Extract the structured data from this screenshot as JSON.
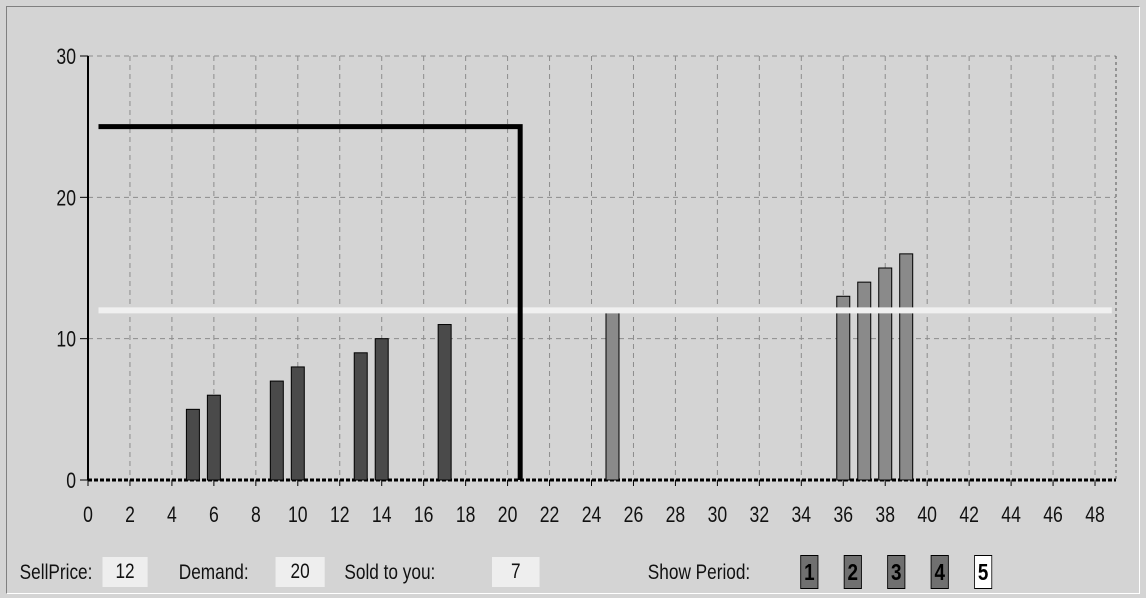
{
  "chart_data": {
    "type": "bar",
    "x_ticks": [
      0,
      2,
      4,
      6,
      8,
      10,
      12,
      14,
      16,
      18,
      20,
      22,
      24,
      26,
      28,
      30,
      32,
      34,
      36,
      38,
      40,
      42,
      44,
      46,
      48
    ],
    "y_ticks": [
      0,
      10,
      20,
      30
    ],
    "xlim": [
      0,
      49
    ],
    "ylim": [
      0,
      30
    ],
    "grid": true,
    "series": [
      {
        "color": "#4a4a4a",
        "points": [
          [
            5,
            5
          ],
          [
            6,
            6
          ],
          [
            9,
            7
          ],
          [
            10,
            8
          ],
          [
            13,
            9
          ],
          [
            14,
            10
          ],
          [
            17,
            11
          ]
        ]
      },
      {
        "color": "#8a8a8a",
        "points": [
          [
            25,
            12
          ],
          [
            36,
            13
          ],
          [
            37,
            14
          ],
          [
            38,
            15
          ],
          [
            39,
            16
          ]
        ]
      }
    ],
    "step_line": {
      "color": "#000000",
      "points": [
        [
          0.5,
          25
        ],
        [
          20.6,
          25
        ],
        [
          20.6,
          0
        ]
      ]
    },
    "price_line": {
      "color": "#f0f0f0",
      "y": 12,
      "x_range": [
        0.5,
        48.8
      ]
    }
  },
  "footer": {
    "sellprice_label": "SellPrice:",
    "sellprice_value": "12",
    "demand_label": "Demand:",
    "demand_value": "20",
    "sold_label": "Sold to you:",
    "sold_value": "7",
    "show_period_label": "Show Period:",
    "periods": [
      "1",
      "2",
      "3",
      "4",
      "5"
    ],
    "active_period": "5"
  }
}
